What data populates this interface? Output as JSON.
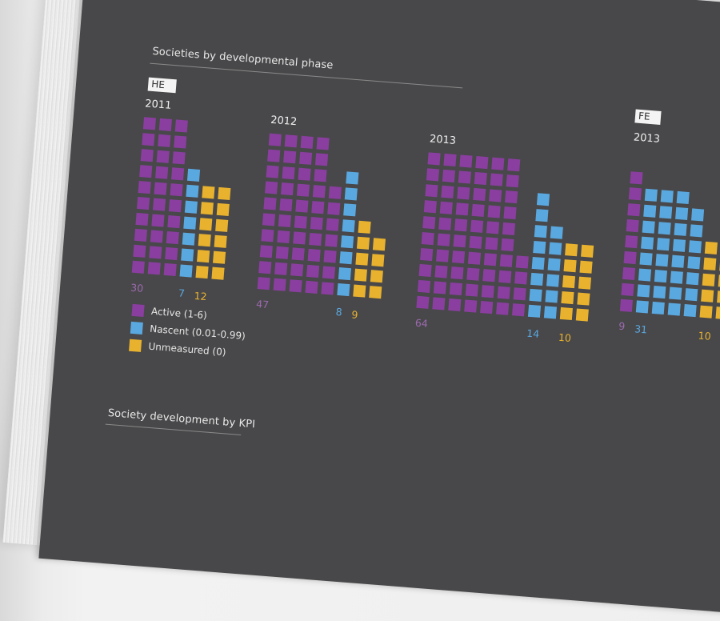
{
  "colors": {
    "active": "#8a3ea0",
    "nascent": "#5aa8e0",
    "unmeasured": "#e8b22e",
    "background": "#48484a"
  },
  "sections": {
    "phase_title": "Societies by developmental phase",
    "kpi_title": "Society development by KPI"
  },
  "chart_data": {
    "type": "waffle",
    "title": "Societies by developmental phase",
    "legend": [
      {
        "key": "active",
        "label": "Active (1-6)"
      },
      {
        "key": "nascent",
        "label": "Nascent (0.01-0.99)"
      },
      {
        "key": "unmeasured",
        "label": "Unmeasured (0)"
      }
    ],
    "groups": [
      {
        "tag": "HE",
        "charts": [
          {
            "year": "2011",
            "values": {
              "active": 30,
              "nascent": 7,
              "unmeasured": 12
            }
          },
          {
            "year": "2012",
            "values": {
              "active": 47,
              "nascent": 8,
              "unmeasured": 9
            }
          },
          {
            "year": "2013",
            "values": {
              "active": 64,
              "nascent": 14,
              "unmeasured": 10
            }
          }
        ]
      },
      {
        "tag": "FE",
        "charts": [
          {
            "year": "2013",
            "values": {
              "active": 9,
              "nascent": 31,
              "unmeasured": 10
            }
          }
        ]
      }
    ],
    "units_per_square": 1
  }
}
